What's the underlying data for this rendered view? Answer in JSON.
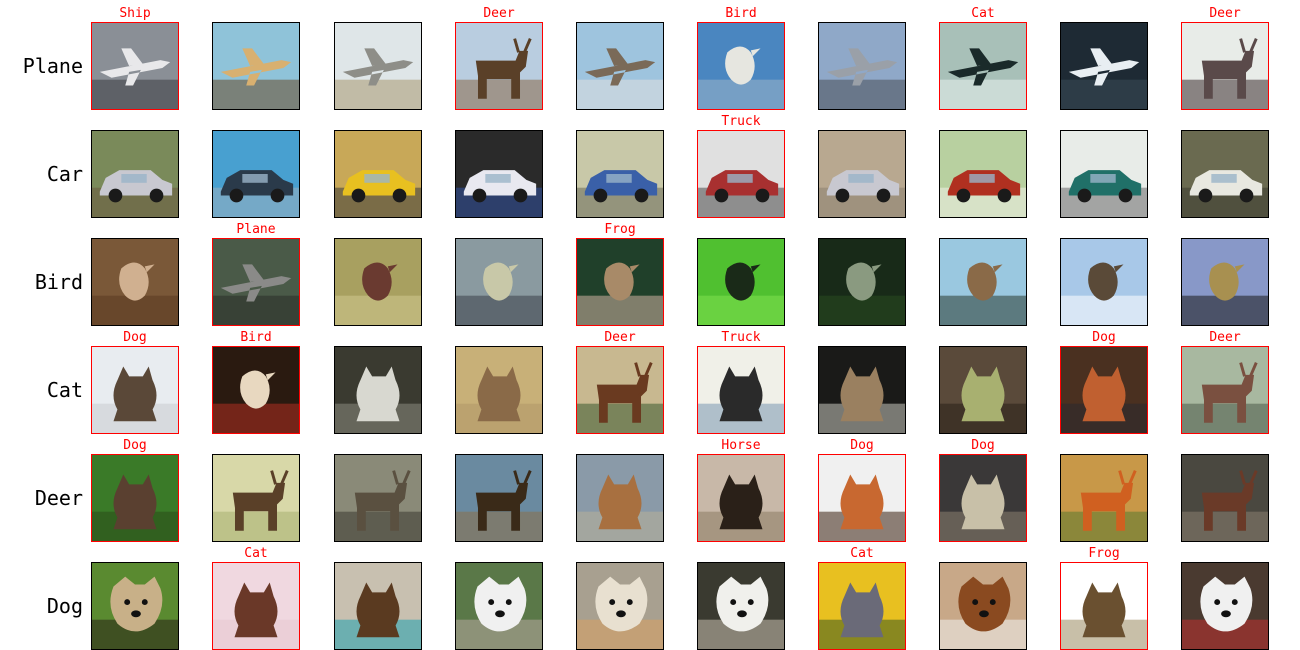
{
  "rows": [
    {
      "label": "Plane",
      "cells": [
        {
          "pred": "Ship",
          "wrong": true,
          "subject": "plane",
          "colors": [
            "#8a8f96",
            "#e8e8ea",
            "#3a3d42"
          ]
        },
        {
          "pred": "",
          "wrong": false,
          "subject": "plane",
          "colors": [
            "#8fc3d9",
            "#d8b070",
            "#6a4a2a"
          ]
        },
        {
          "pred": "",
          "wrong": false,
          "subject": "plane",
          "colors": [
            "#dfe6e8",
            "#8e8e88",
            "#a89870"
          ]
        },
        {
          "pred": "Deer",
          "wrong": true,
          "subject": "deer",
          "colors": [
            "#b9cde0",
            "#5a4028",
            "#8a6a48"
          ]
        },
        {
          "pred": "",
          "wrong": false,
          "subject": "plane",
          "colors": [
            "#9ec4de",
            "#7a6a58",
            "#e0e0e0"
          ]
        },
        {
          "pred": "Bird",
          "wrong": true,
          "subject": "bird",
          "colors": [
            "#4a86c0",
            "#e6e6e0",
            "#9ab4c8"
          ]
        },
        {
          "pred": "",
          "wrong": false,
          "subject": "plane",
          "colors": [
            "#8fa8c8",
            "#9aa0a8",
            "#4a4e58"
          ]
        },
        {
          "pred": "Cat",
          "wrong": true,
          "subject": "plane",
          "colors": [
            "#a8c0b8",
            "#1a2a2a",
            "#e8f0ee"
          ]
        },
        {
          "pred": "",
          "wrong": false,
          "subject": "plane",
          "colors": [
            "#1e2a34",
            "#e8eef2",
            "#3a4a58"
          ]
        },
        {
          "pred": "Deer",
          "wrong": true,
          "subject": "deer",
          "colors": [
            "#e8ece8",
            "#5a4a4a",
            "#3a2e2e"
          ]
        }
      ]
    },
    {
      "label": "Car",
      "cells": [
        {
          "pred": "",
          "wrong": false,
          "subject": "car",
          "colors": [
            "#7a8a5a",
            "#c8c8d0",
            "#6a5a40"
          ]
        },
        {
          "pred": "",
          "wrong": false,
          "subject": "car",
          "colors": [
            "#48a0d0",
            "#2a3a4a",
            "#9ab0c0"
          ]
        },
        {
          "pred": "",
          "wrong": false,
          "subject": "car",
          "colors": [
            "#c8a858",
            "#e8c020",
            "#3a3a3a"
          ]
        },
        {
          "pred": "",
          "wrong": false,
          "subject": "car",
          "colors": [
            "#2a2a2a",
            "#e8e8f0",
            "#3050a0"
          ]
        },
        {
          "pred": "",
          "wrong": false,
          "subject": "car",
          "colors": [
            "#c8c8a8",
            "#3a60a8",
            "#6a6a58"
          ]
        },
        {
          "pred": "Truck",
          "wrong": true,
          "subject": "car",
          "colors": [
            "#e0e0e0",
            "#a83030",
            "#4a4a4a"
          ]
        },
        {
          "pred": "",
          "wrong": false,
          "subject": "car",
          "colors": [
            "#b8a890",
            "#c8c8d0",
            "#8a8070"
          ]
        },
        {
          "pred": "",
          "wrong": false,
          "subject": "car",
          "colors": [
            "#b8d0a0",
            "#b03020",
            "#f0f0e8"
          ]
        },
        {
          "pred": "",
          "wrong": false,
          "subject": "car",
          "colors": [
            "#e8ece8",
            "#207068",
            "#6a6a6a"
          ]
        },
        {
          "pred": "",
          "wrong": false,
          "subject": "car",
          "colors": [
            "#6a6a50",
            "#e8e8e0",
            "#3a3a30"
          ]
        }
      ]
    },
    {
      "label": "Bird",
      "cells": [
        {
          "pred": "",
          "wrong": false,
          "subject": "bird",
          "colors": [
            "#7a5838",
            "#d0b090",
            "#5a3a20"
          ]
        },
        {
          "pred": "Plane",
          "wrong": true,
          "subject": "plane",
          "colors": [
            "#4a5a48",
            "#8a8a88",
            "#2a2e28"
          ]
        },
        {
          "pred": "",
          "wrong": false,
          "subject": "bird",
          "colors": [
            "#a8a060",
            "#6a3a30",
            "#d0c890"
          ]
        },
        {
          "pred": "",
          "wrong": false,
          "subject": "bird",
          "colors": [
            "#8a9aa0",
            "#c8c8a8",
            "#3a4048"
          ]
        },
        {
          "pred": "Frog",
          "wrong": true,
          "subject": "bird",
          "colors": [
            "#20402a",
            "#a88a68",
            "#d0b0a0"
          ]
        },
        {
          "pred": "",
          "wrong": false,
          "subject": "bird",
          "colors": [
            "#50c030",
            "#1a2a18",
            "#80e050"
          ]
        },
        {
          "pred": "",
          "wrong": false,
          "subject": "bird",
          "colors": [
            "#182a18",
            "#8a9a80",
            "#2a4a20"
          ]
        },
        {
          "pred": "",
          "wrong": false,
          "subject": "bird",
          "colors": [
            "#9ac8e0",
            "#8a6a48",
            "#2a3a30"
          ]
        },
        {
          "pred": "",
          "wrong": false,
          "subject": "bird",
          "colors": [
            "#a8c8e8",
            "#5a4a38",
            "#ffffff"
          ]
        },
        {
          "pred": "",
          "wrong": false,
          "subject": "bird",
          "colors": [
            "#8898c8",
            "#a89050",
            "#1a1a1a"
          ]
        }
      ]
    },
    {
      "label": "Cat",
      "cells": [
        {
          "pred": "Dog",
          "wrong": true,
          "subject": "animal",
          "colors": [
            "#e8ecf0",
            "#5a4838",
            "#c8ccd0"
          ]
        },
        {
          "pred": "Bird",
          "wrong": true,
          "subject": "bird",
          "colors": [
            "#2a1a10",
            "#e8d8c0",
            "#b03020"
          ]
        },
        {
          "pred": "",
          "wrong": false,
          "subject": "animal",
          "colors": [
            "#3a3a30",
            "#d8d8d0",
            "#8a8a80"
          ]
        },
        {
          "pred": "",
          "wrong": false,
          "subject": "animal",
          "colors": [
            "#c8b078",
            "#8a6a48",
            "#b09868"
          ]
        },
        {
          "pred": "Deer",
          "wrong": true,
          "subject": "deer",
          "colors": [
            "#c8b890",
            "#6a3a20",
            "#3a5a30"
          ]
        },
        {
          "pred": "Truck",
          "wrong": true,
          "subject": "animal",
          "colors": [
            "#f0f0e8",
            "#2a2a2a",
            "#7a98b0"
          ]
        },
        {
          "pred": "",
          "wrong": false,
          "subject": "animal",
          "colors": [
            "#1a1a18",
            "#9a8060",
            "#c8c8c0"
          ]
        },
        {
          "pred": "",
          "wrong": false,
          "subject": "animal",
          "colors": [
            "#5a4a3a",
            "#a8b070",
            "#2a2018"
          ]
        },
        {
          "pred": "Dog",
          "wrong": true,
          "subject": "animal",
          "colors": [
            "#4a3020",
            "#c06030",
            "#2a2a30"
          ]
        },
        {
          "pred": "Deer",
          "wrong": true,
          "subject": "deer",
          "colors": [
            "#a8b8a0",
            "#7a5040",
            "#4a5a48"
          ]
        }
      ]
    },
    {
      "label": "Deer",
      "cells": [
        {
          "pred": "Dog",
          "wrong": true,
          "subject": "animal",
          "colors": [
            "#3a7a28",
            "#5a4030",
            "#2a4a18"
          ]
        },
        {
          "pred": "",
          "wrong": false,
          "subject": "deer",
          "colors": [
            "#d8d8a8",
            "#5a4028",
            "#a8b070"
          ]
        },
        {
          "pred": "",
          "wrong": false,
          "subject": "deer",
          "colors": [
            "#8a8a78",
            "#5a5040",
            "#3a3830"
          ]
        },
        {
          "pred": "",
          "wrong": false,
          "subject": "deer",
          "colors": [
            "#6a8aa0",
            "#3a2a18",
            "#8a7048"
          ]
        },
        {
          "pred": "",
          "wrong": false,
          "subject": "animal",
          "colors": [
            "#8a9aa8",
            "#a87040",
            "#b8b098"
          ]
        },
        {
          "pred": "Horse",
          "wrong": true,
          "subject": "animal",
          "colors": [
            "#c8b8a8",
            "#2a2018",
            "#8a7a60"
          ]
        },
        {
          "pred": "Dog",
          "wrong": true,
          "subject": "animal",
          "colors": [
            "#f0f0f0",
            "#c86830",
            "#3a2010"
          ]
        },
        {
          "pred": "Dog",
          "wrong": true,
          "subject": "animal",
          "colors": [
            "#3a3838",
            "#c8c0a8",
            "#8a8070"
          ]
        },
        {
          "pred": "",
          "wrong": false,
          "subject": "deer",
          "colors": [
            "#c89848",
            "#d06020",
            "#5a7a30"
          ]
        },
        {
          "pred": "",
          "wrong": false,
          "subject": "deer",
          "colors": [
            "#4a4840",
            "#6a3a28",
            "#8a8070"
          ]
        }
      ]
    },
    {
      "label": "Dog",
      "cells": [
        {
          "pred": "",
          "wrong": false,
          "subject": "dog",
          "colors": [
            "#5a8a30",
            "#c8b088",
            "#2a2018"
          ]
        },
        {
          "pred": "Cat",
          "wrong": true,
          "subject": "animal",
          "colors": [
            "#f0d8e0",
            "#6a3828",
            "#e8c8d0"
          ]
        },
        {
          "pred": "",
          "wrong": false,
          "subject": "animal",
          "colors": [
            "#c8c0b0",
            "#5a3a20",
            "#20a0b0"
          ]
        },
        {
          "pred": "",
          "wrong": false,
          "subject": "dog",
          "colors": [
            "#5a7848",
            "#f0f0f0",
            "#b8a8a0"
          ]
        },
        {
          "pred": "",
          "wrong": false,
          "subject": "dog",
          "colors": [
            "#a8a090",
            "#e8e0d0",
            "#d8a060"
          ]
        },
        {
          "pred": "",
          "wrong": false,
          "subject": "dog",
          "colors": [
            "#3a3a30",
            "#f0f0ec",
            "#c8c0b0"
          ]
        },
        {
          "pred": "Cat",
          "wrong": true,
          "subject": "animal",
          "colors": [
            "#e8c020",
            "#6a6a78",
            "#3a5a20"
          ]
        },
        {
          "pred": "",
          "wrong": false,
          "subject": "dog",
          "colors": [
            "#c8a888",
            "#8a4a20",
            "#f0f0f0"
          ]
        },
        {
          "pred": "Frog",
          "wrong": true,
          "subject": "animal",
          "colors": [
            "#ffffff",
            "#6a5030",
            "#9a8a60"
          ]
        },
        {
          "pred": "",
          "wrong": false,
          "subject": "dog",
          "colors": [
            "#4a3a30",
            "#f0f0f0",
            "#c03030"
          ]
        }
      ]
    }
  ]
}
